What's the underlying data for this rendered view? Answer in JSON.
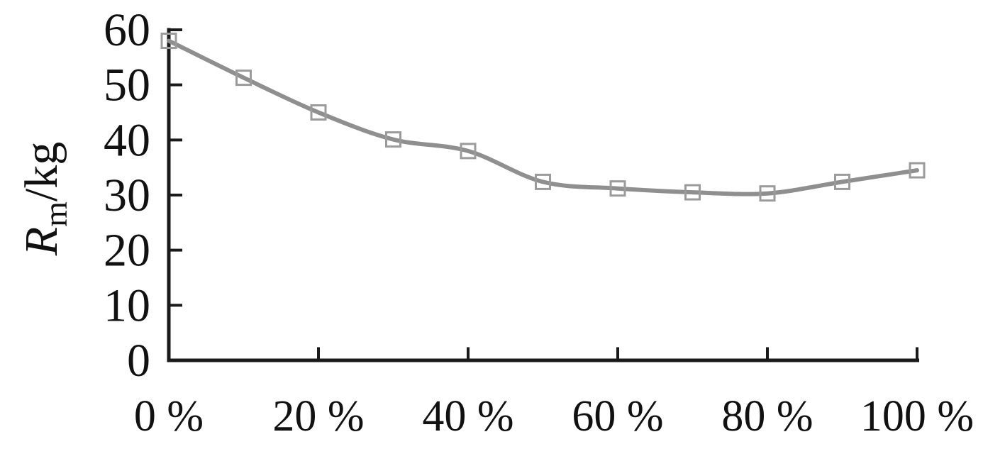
{
  "figure": {
    "background": "#ffffff"
  },
  "chart_data": {
    "type": "line",
    "title": "",
    "xlabel": "",
    "ylabel": {
      "symbol": "R",
      "subscript": "m",
      "suffix": "/kg",
      "display": "Rm/kg"
    },
    "x": [
      0,
      10,
      20,
      30,
      40,
      50,
      60,
      70,
      80,
      90,
      100
    ],
    "x_unit": "%",
    "series": [
      {
        "name": "Rm",
        "values": [
          58,
          51.3,
          45,
          40.1,
          38,
          32.4,
          31.2,
          30.5,
          30.3,
          32.4,
          34.5
        ]
      }
    ],
    "xlim": [
      0,
      100
    ],
    "ylim": [
      0,
      60
    ],
    "xticks": {
      "values": [
        0,
        20,
        40,
        60,
        80,
        100
      ],
      "labels": [
        "0 %",
        "20 %",
        "40 %",
        "60 %",
        "80 %",
        "100 %"
      ]
    },
    "yticks": {
      "values": [
        0,
        10,
        20,
        30,
        40,
        50,
        60
      ],
      "labels": [
        "0",
        "10",
        "20",
        "30",
        "40",
        "50",
        "60"
      ]
    },
    "grid": false,
    "legend": false,
    "marker": "open-square",
    "line_smoothing": true,
    "colors": {
      "line": "#8f8f8f",
      "marker": "#9b9b9b",
      "axis": "#1a1a1a",
      "text": "#111111"
    }
  }
}
